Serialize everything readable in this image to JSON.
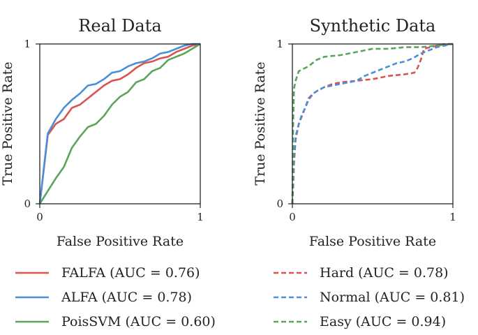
{
  "chart_data": [
    {
      "type": "line",
      "title": "Real Data",
      "xlabel": "False Positive Rate",
      "ylabel": "True Positive Rate",
      "xlim": [
        0,
        1
      ],
      "ylim": [
        0,
        1
      ],
      "xticks": [
        "0",
        "1"
      ],
      "yticks": [
        "0",
        "1"
      ],
      "grid": false,
      "series": [
        {
          "name": "FALFA",
          "legend": "FALFA (AUC = 0.76)",
          "color": "#d9534f",
          "style": "solid",
          "x": [
            0,
            0.05,
            0.1,
            0.15,
            0.2,
            0.25,
            0.3,
            0.35,
            0.4,
            0.45,
            0.5,
            0.55,
            0.6,
            0.65,
            0.7,
            0.75,
            0.8,
            0.85,
            0.9,
            0.95,
            1.0
          ],
          "y": [
            0,
            0.43,
            0.5,
            0.53,
            0.6,
            0.62,
            0.66,
            0.7,
            0.74,
            0.77,
            0.78,
            0.81,
            0.85,
            0.88,
            0.89,
            0.91,
            0.92,
            0.95,
            0.97,
            0.99,
            1.0
          ]
        },
        {
          "name": "ALFA",
          "legend": "ALFA (AUC = 0.78)",
          "color": "#4a8fd8",
          "style": "solid",
          "x": [
            0,
            0.05,
            0.1,
            0.15,
            0.2,
            0.25,
            0.3,
            0.35,
            0.4,
            0.45,
            0.5,
            0.55,
            0.6,
            0.65,
            0.7,
            0.75,
            0.8,
            0.85,
            0.9,
            0.95,
            1.0
          ],
          "y": [
            0,
            0.44,
            0.53,
            0.6,
            0.65,
            0.69,
            0.74,
            0.75,
            0.78,
            0.82,
            0.83,
            0.86,
            0.88,
            0.89,
            0.91,
            0.94,
            0.95,
            0.97,
            0.99,
            1.0,
            1.0
          ]
        },
        {
          "name": "PoisSVM",
          "legend": "PoisSVM (AUC = 0.60)",
          "color": "#5aa55a",
          "style": "solid",
          "x": [
            0,
            0.05,
            0.1,
            0.15,
            0.2,
            0.25,
            0.3,
            0.35,
            0.4,
            0.45,
            0.5,
            0.55,
            0.6,
            0.65,
            0.7,
            0.75,
            0.8,
            0.85,
            0.9,
            0.95,
            1.0
          ],
          "y": [
            0,
            0.08,
            0.16,
            0.23,
            0.35,
            0.42,
            0.48,
            0.5,
            0.55,
            0.62,
            0.67,
            0.7,
            0.76,
            0.78,
            0.83,
            0.85,
            0.9,
            0.92,
            0.94,
            0.97,
            1.0
          ]
        }
      ]
    },
    {
      "type": "line",
      "title": "Synthetic Data",
      "xlabel": "False Positive Rate",
      "ylabel": "True Positive Rate",
      "xlim": [
        0,
        1
      ],
      "ylim": [
        0,
        1
      ],
      "xticks": [
        "0",
        "1"
      ],
      "yticks": [
        "0",
        "1"
      ],
      "grid": false,
      "series": [
        {
          "name": "Hard",
          "legend": "Hard (AUC = 0.78)",
          "color": "#d9534f",
          "style": "dashed",
          "x": [
            0,
            0.005,
            0.01,
            0.02,
            0.04,
            0.06,
            0.08,
            0.1,
            0.13,
            0.16,
            0.2,
            0.25,
            0.3,
            0.4,
            0.5,
            0.6,
            0.7,
            0.76,
            0.78,
            0.8,
            0.82,
            0.9,
            0.95,
            1.0
          ],
          "y": [
            0,
            0.1,
            0.25,
            0.4,
            0.5,
            0.55,
            0.6,
            0.65,
            0.69,
            0.71,
            0.73,
            0.75,
            0.76,
            0.77,
            0.78,
            0.8,
            0.81,
            0.82,
            0.85,
            0.9,
            0.97,
            0.99,
            1.0,
            1.0
          ]
        },
        {
          "name": "Normal",
          "legend": "Normal (AUC = 0.81)",
          "color": "#4a8fd8",
          "style": "dashed",
          "x": [
            0,
            0.005,
            0.01,
            0.02,
            0.04,
            0.06,
            0.08,
            0.1,
            0.13,
            0.16,
            0.2,
            0.3,
            0.4,
            0.45,
            0.5,
            0.55,
            0.6,
            0.65,
            0.7,
            0.75,
            0.8,
            0.85,
            0.9,
            0.95,
            1.0
          ],
          "y": [
            0,
            0.15,
            0.3,
            0.42,
            0.5,
            0.56,
            0.6,
            0.66,
            0.69,
            0.71,
            0.73,
            0.75,
            0.77,
            0.8,
            0.82,
            0.84,
            0.86,
            0.88,
            0.89,
            0.91,
            0.94,
            0.96,
            0.98,
            0.99,
            1.0
          ]
        },
        {
          "name": "Easy",
          "legend": "Easy (AUC = 0.94)",
          "color": "#5aa55a",
          "style": "dashed",
          "x": [
            0,
            0.005,
            0.01,
            0.02,
            0.03,
            0.04,
            0.06,
            0.1,
            0.15,
            0.2,
            0.3,
            0.4,
            0.5,
            0.6,
            0.7,
            0.8,
            0.9,
            1.0
          ],
          "y": [
            0,
            0.5,
            0.72,
            0.77,
            0.8,
            0.83,
            0.84,
            0.86,
            0.9,
            0.92,
            0.93,
            0.95,
            0.97,
            0.97,
            0.98,
            0.98,
            0.99,
            1.0
          ]
        }
      ]
    }
  ]
}
